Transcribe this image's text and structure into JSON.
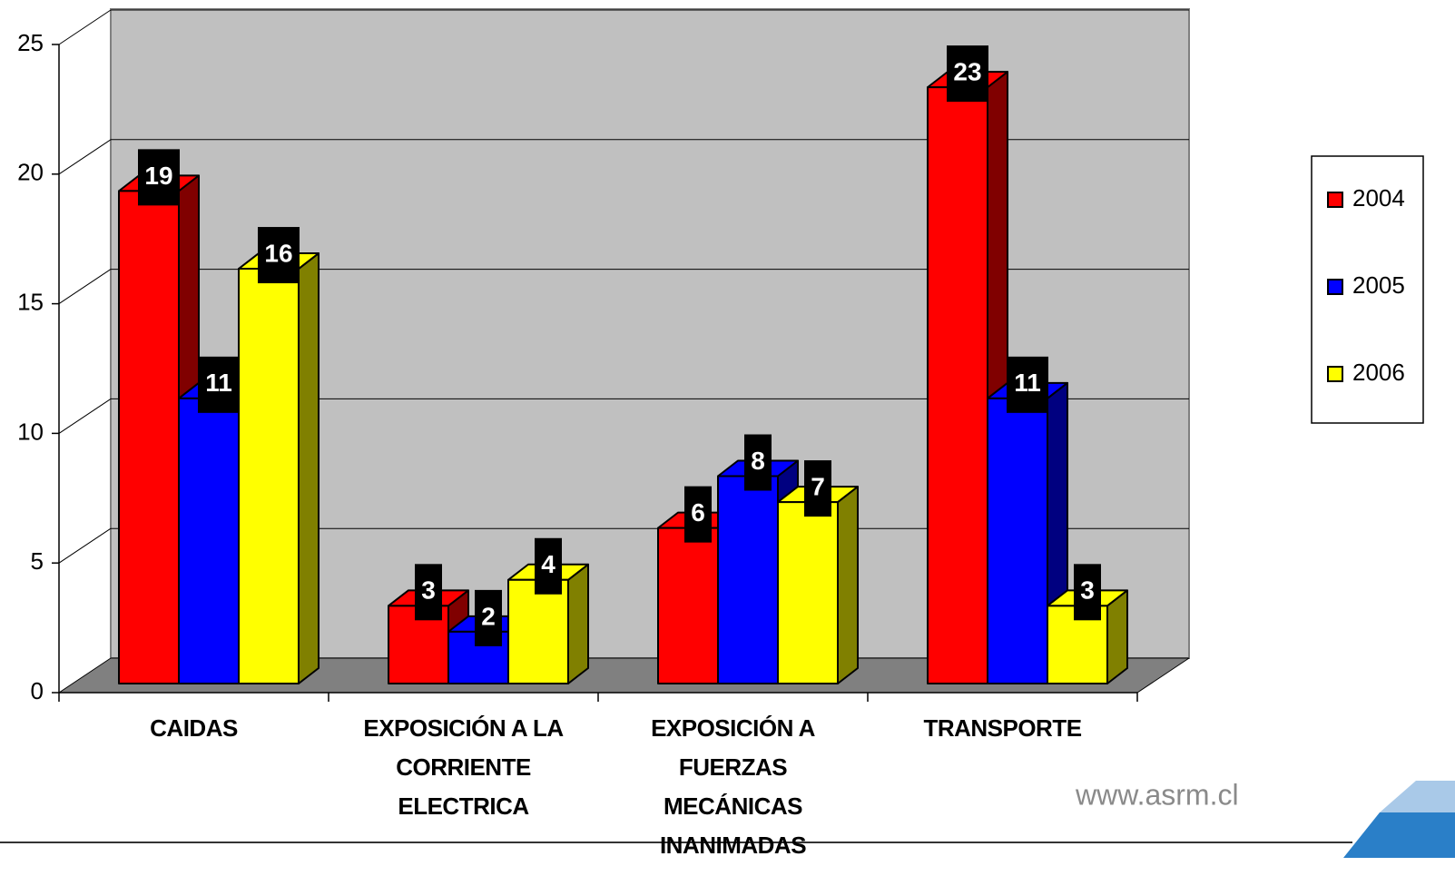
{
  "chart_data": {
    "type": "bar3d",
    "categories": [
      "CAIDAS",
      "EXPOSICIÓN A LA CORRIENTE ELECTRICA",
      "EXPOSICIÓN A FUERZAS MECÁNICAS INANIMADAS",
      "TRANSPORTE"
    ],
    "series": [
      {
        "name": "2004",
        "color": "#ff0000",
        "side": "#800000",
        "values": [
          19,
          3,
          6,
          23
        ]
      },
      {
        "name": "2005",
        "color": "#0000ff",
        "side": "#000080",
        "values": [
          11,
          2,
          8,
          11
        ]
      },
      {
        "name": "2006",
        "color": "#ffff00",
        "side": "#808000",
        "values": [
          16,
          4,
          7,
          3
        ]
      }
    ],
    "ylim": [
      0,
      25
    ],
    "yticks": [
      0,
      5,
      10,
      15,
      20,
      25
    ],
    "grid": true,
    "legend": "right",
    "watermark": "www.asrm.cl"
  }
}
